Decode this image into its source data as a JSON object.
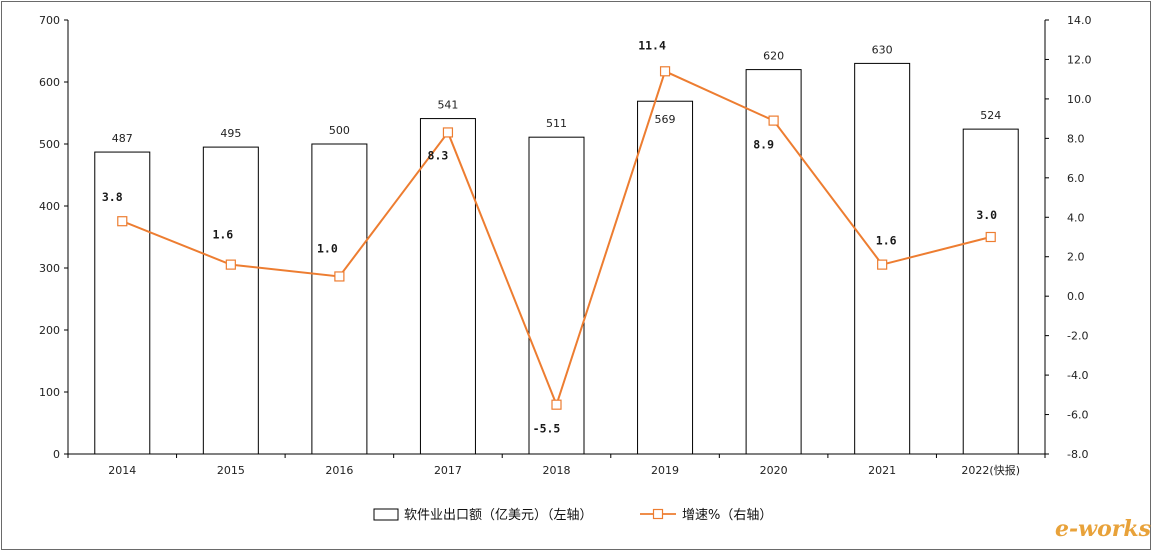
{
  "chart_data": {
    "type": "bar+line",
    "categories": [
      "2014",
      "2015",
      "2016",
      "2017",
      "2018",
      "2019",
      "2020",
      "2021",
      "2022(快报)"
    ],
    "series": [
      {
        "name": "软件业出口额（亿美元）（左轴）",
        "type": "bar",
        "axis": "left",
        "values": [
          487,
          495,
          500,
          541,
          511,
          569,
          620,
          630,
          524
        ],
        "labels": [
          "487",
          "495",
          "500",
          "541",
          "511",
          "569",
          "620",
          "630",
          "524"
        ]
      },
      {
        "name": "增速%（右轴）",
        "type": "line",
        "axis": "right",
        "values": [
          3.8,
          1.6,
          1.0,
          8.3,
          -5.5,
          11.4,
          8.9,
          1.6,
          3.0
        ],
        "labels": [
          "3.8",
          "1.6",
          "1.0",
          "8.3",
          "-5.5",
          "11.4",
          "8.9",
          "1.6",
          "3.0"
        ]
      }
    ],
    "left_axis": {
      "min": 0,
      "max": 700,
      "step": 100,
      "ticks": [
        "0",
        "100",
        "200",
        "300",
        "400",
        "500",
        "600",
        "700"
      ]
    },
    "right_axis": {
      "min": -8,
      "max": 14,
      "step": 2,
      "ticks": [
        "-8.0",
        "-6.0",
        "-4.0",
        "-2.0",
        "0.0",
        "2.0",
        "4.0",
        "6.0",
        "8.0",
        "10.0",
        "12.0",
        "14.0"
      ]
    },
    "legend": [
      "软件业出口额（亿美元）（左轴）",
      "增速%（右轴）"
    ],
    "legend_position": "bottom",
    "colors": {
      "bar_fill": "#ffffff",
      "bar_stroke": "#000000",
      "line": "#ed7d31",
      "marker_fill": "#ffffff",
      "axis": "#000000"
    }
  },
  "watermark": "e-works"
}
